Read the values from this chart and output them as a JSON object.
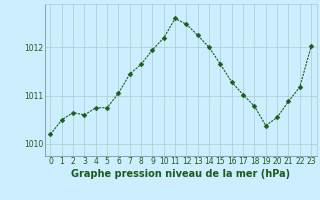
{
  "x": [
    0,
    1,
    2,
    3,
    4,
    5,
    6,
    7,
    8,
    9,
    10,
    11,
    12,
    13,
    14,
    15,
    16,
    17,
    18,
    19,
    20,
    21,
    22,
    23
  ],
  "y": [
    1010.2,
    1010.5,
    1010.65,
    1010.6,
    1010.75,
    1010.75,
    1011.05,
    1011.45,
    1011.65,
    1011.95,
    1012.2,
    1012.6,
    1012.48,
    1012.25,
    1012.0,
    1011.65,
    1011.28,
    1011.02,
    1010.78,
    1010.38,
    1010.55,
    1010.88,
    1011.18,
    1012.02
  ],
  "line_color": "#1a5c1a",
  "marker": "D",
  "marker_size": 2.5,
  "bg_color": "#cceeff",
  "grid_color": "#aacccc",
  "tick_label_color": "#1a5c1a",
  "xlabel": "Graphe pression niveau de la mer (hPa)",
  "xlabel_color": "#1a5c1a",
  "xlabel_fontsize": 7,
  "ylabel_ticks": [
    1010,
    1011,
    1012
  ],
  "ylim": [
    1009.75,
    1012.9
  ],
  "xlim": [
    -0.5,
    23.5
  ],
  "tick_fontsize": 5.5,
  "linewidth": 0.8
}
